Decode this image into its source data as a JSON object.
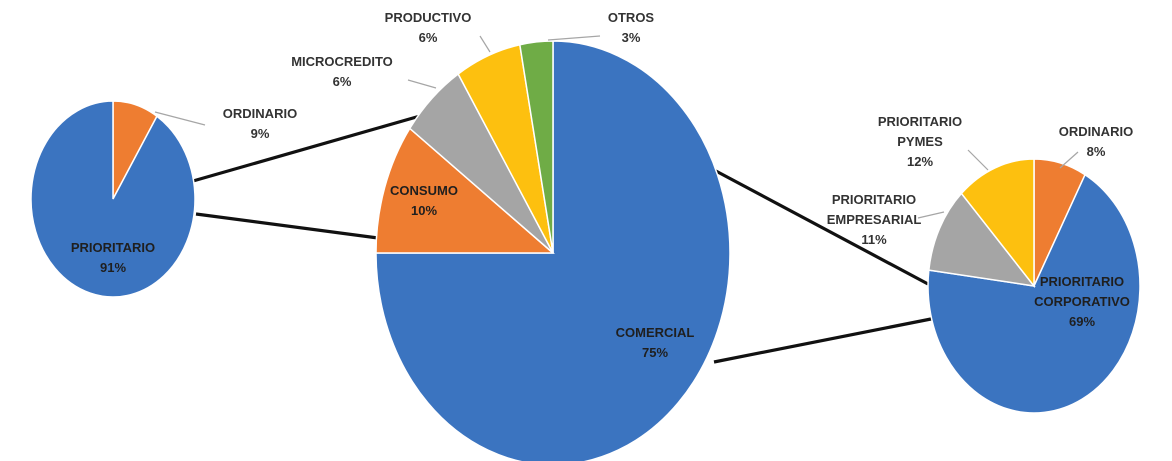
{
  "chart_data": [
    {
      "type": "pie",
      "title": "",
      "slices": [
        {
          "label": "PRIORITARIO",
          "value": 91,
          "display": "91%",
          "color": "#3b74c0"
        },
        {
          "label": "ORDINARIO",
          "value": 9,
          "display": "9%",
          "color": "#ee7d31"
        }
      ]
    },
    {
      "type": "pie",
      "title": "",
      "slices": [
        {
          "label": "COMERCIAL",
          "value": 75,
          "display": "75%",
          "color": "#3b74c0"
        },
        {
          "label": "CONSUMO",
          "value": 10,
          "display": "10%",
          "color": "#ee7d31"
        },
        {
          "label": "MICROCREDITO",
          "value": 6,
          "display": "6%",
          "color": "#a5a5a5"
        },
        {
          "label": "PRODUCTIVO",
          "value": 6,
          "display": "6%",
          "color": "#fdc00f"
        },
        {
          "label": "OTROS",
          "value": 3,
          "display": "3%",
          "color": "#6fac46"
        }
      ]
    },
    {
      "type": "pie",
      "title": "",
      "slices": [
        {
          "label": "PRIORITARIO CORPORATIVO",
          "value": 69,
          "display": "69%",
          "color": "#3b74c0"
        },
        {
          "label": "PRIORITARIO EMPRESARIAL",
          "value": 11,
          "display": "11%",
          "color": "#a5a5a5"
        },
        {
          "label": "PRIORITARIO PYMES",
          "value": 12,
          "display": "12%",
          "color": "#fdc00f"
        },
        {
          "label": "ORDINARIO",
          "value": 8,
          "display": "8%",
          "color": "#ee7d31"
        }
      ]
    }
  ]
}
